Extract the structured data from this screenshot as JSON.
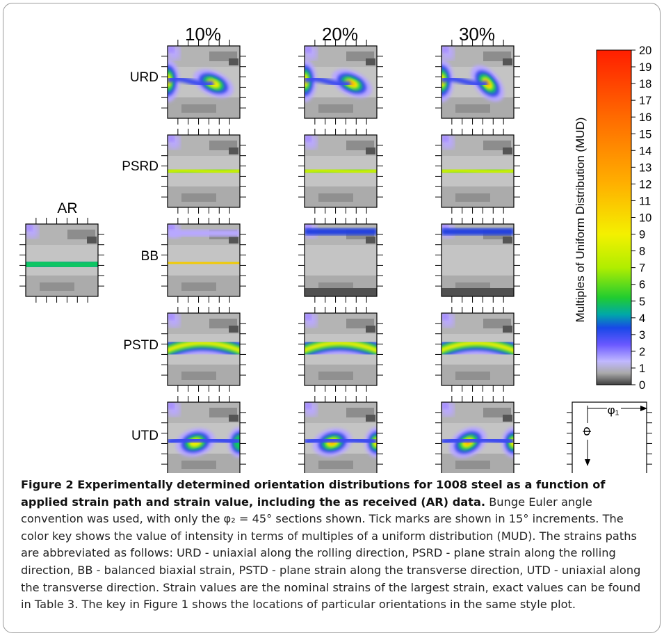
{
  "figure": {
    "column_labels": [
      "10%",
      "20%",
      "30%"
    ],
    "row_labels": [
      "URD",
      "PSRD",
      "BB",
      "PSTD",
      "UTD"
    ],
    "ar_label": "AR",
    "colorbar": {
      "ticks": [
        "20",
        "19",
        "18",
        "17",
        "16",
        "15",
        "14",
        "13",
        "12",
        "11",
        "10",
        "9",
        "8",
        "7",
        "6",
        "5",
        "4",
        "3",
        "2",
        "1",
        "0"
      ],
      "title": "Multiples of Uniform Distribution (MUD)",
      "colors": [
        "#ff1e00",
        "#ff3a00",
        "#ff5200",
        "#ff6a00",
        "#ff8200",
        "#ff9a00",
        "#ffb200",
        "#ffca00",
        "#ffe000",
        "#f6f200",
        "#d8f200",
        "#a0ec00",
        "#40d800",
        "#00c040",
        "#00a0a0",
        "#1060d8",
        "#2030f0",
        "#5050ff",
        "#9a90ff",
        "#c8c0ff",
        "#a8a8a8",
        "#505050"
      ]
    },
    "key": {
      "phi1_label": "φ₁",
      "Phi_label": "Φ"
    }
  },
  "caption": {
    "title": "Figure 2 Experimentally determined orientation distributions for 1008 steel as a function of applied strain path and strain value, including the as received (AR) data.",
    "body": " Bunge Euler angle convention was used, with only the φ₂ = 45° sections shown. Tick marks are shown in 15° increments. The color key shows the value of intensity in terms of multiples of a uniform distribution (MUD). The strains paths are abbreviated as follows: URD - uniaxial along the rolling direction, PSRD - plane strain along the rolling direction, BB - balanced biaxial strain, PSTD - plane strain along the transverse direction, UTD - uniaxial along the transverse direction. Strain values are the nominal strains of the largest strain, exact values can be found in Table 3. The key in Figure 1 shows the locations of particular orientations in the same style plot."
  }
}
